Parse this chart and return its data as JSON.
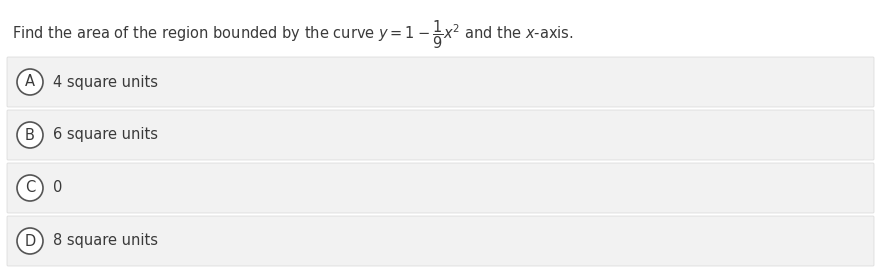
{
  "title_text": "Find the area of the region bounded by the curve $y=1-\\dfrac{1}{9}x^2$ and the $x$-axis.",
  "options": [
    {
      "label": "A",
      "text": "4 square units"
    },
    {
      "label": "B",
      "text": "6 square units"
    },
    {
      "label": "C",
      "text": "0"
    },
    {
      "label": "D",
      "text": "8 square units"
    }
  ],
  "bg_color": "#ffffff",
  "option_bg_color": "#f2f2f2",
  "option_border_color": "#d8d8d8",
  "text_color": "#3a3a3a",
  "circle_edge_color": "#555555",
  "title_fontsize": 10.5,
  "option_fontsize": 10.5,
  "fig_width": 8.81,
  "fig_height": 2.73
}
